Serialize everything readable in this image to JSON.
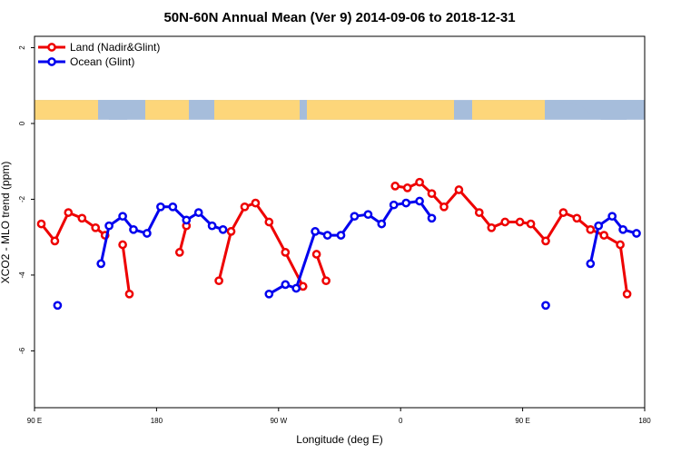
{
  "chart_data": {
    "type": "line",
    "title": "50N-60N Annual Mean (Ver 9)   2014-09-06 to 2018-12-31",
    "xlabel": "Longitude (deg E)",
    "ylabel": "XCO2 - MLO trend (ppm)",
    "xlim": [
      90,
      540
    ],
    "ylim": [
      -7.5,
      2.3
    ],
    "x_ticks": [
      {
        "value": 90,
        "label": "90 E"
      },
      {
        "value": 180,
        "label": "180"
      },
      {
        "value": 270,
        "label": "90 W"
      },
      {
        "value": 360,
        "label": "0"
      },
      {
        "value": 450,
        "label": "90 E"
      },
      {
        "value": 540,
        "label": "180"
      }
    ],
    "y_ticks": [
      {
        "value": 2,
        "label": "2"
      },
      {
        "value": 0,
        "label": "0"
      },
      {
        "value": -2,
        "label": "-2"
      },
      {
        "value": -4,
        "label": "-4"
      },
      {
        "value": -6,
        "label": "-6"
      }
    ],
    "legend": {
      "position": "top-left"
    },
    "map_strip": {
      "y_range": [
        0.1,
        0.62
      ],
      "ocean_color": "#a6bddb",
      "land_color": "#fdd67a"
    },
    "series": [
      {
        "name": "Land (Nadir&Glint)",
        "color": "#ee0000",
        "segments": [
          [
            [
              95,
              -2.65
            ],
            [
              105,
              -3.1
            ],
            [
              115,
              -2.35
            ],
            [
              125,
              -2.5
            ],
            [
              135,
              -2.75
            ],
            [
              142,
              -2.95
            ]
          ],
          [
            [
              155,
              -3.2
            ],
            [
              160,
              -4.5
            ]
          ],
          [
            [
              197,
              -3.4
            ],
            [
              202,
              -2.7
            ]
          ],
          [
            [
              226,
              -4.15
            ],
            [
              235,
              -2.85
            ],
            [
              245,
              -2.2
            ],
            [
              253,
              -2.1
            ],
            [
              263,
              -2.6
            ],
            [
              275,
              -3.4
            ],
            [
              288,
              -4.3
            ]
          ],
          [
            [
              298,
              -3.45
            ],
            [
              305,
              -4.15
            ]
          ],
          [
            [
              356,
              -1.65
            ],
            [
              365,
              -1.7
            ],
            [
              374,
              -1.55
            ],
            [
              383,
              -1.85
            ],
            [
              392,
              -2.2
            ],
            [
              403,
              -1.75
            ],
            [
              418,
              -2.35
            ],
            [
              427,
              -2.75
            ],
            [
              437,
              -2.6
            ],
            [
              448,
              -2.6
            ],
            [
              456,
              -2.65
            ],
            [
              467,
              -3.1
            ],
            [
              480,
              -2.35
            ],
            [
              490,
              -2.5
            ],
            [
              500,
              -2.8
            ],
            [
              510,
              -2.95
            ],
            [
              522,
              -3.2
            ],
            [
              527,
              -4.5
            ]
          ]
        ]
      },
      {
        "name": "Ocean (Glint)",
        "color": "#0000ee",
        "segments": [
          [
            [
              107,
              -4.8
            ]
          ],
          [
            [
              139,
              -3.7
            ],
            [
              145,
              -2.7
            ],
            [
              155,
              -2.45
            ],
            [
              163,
              -2.8
            ],
            [
              173,
              -2.9
            ],
            [
              183,
              -2.2
            ],
            [
              192,
              -2.2
            ],
            [
              202,
              -2.55
            ],
            [
              211,
              -2.35
            ],
            [
              221,
              -2.7
            ],
            [
              229,
              -2.8
            ]
          ],
          [
            [
              263,
              -4.5
            ],
            [
              275,
              -4.25
            ],
            [
              283,
              -4.35
            ],
            [
              297,
              -2.85
            ],
            [
              306,
              -2.95
            ],
            [
              316,
              -2.95
            ],
            [
              326,
              -2.45
            ],
            [
              336,
              -2.4
            ],
            [
              346,
              -2.65
            ],
            [
              355,
              -2.15
            ],
            [
              364,
              -2.1
            ],
            [
              374,
              -2.05
            ],
            [
              383,
              -2.5
            ]
          ],
          [
            [
              467,
              -4.8
            ]
          ],
          [
            [
              500,
              -3.7
            ],
            [
              506,
              -2.7
            ],
            [
              516,
              -2.45
            ],
            [
              524,
              -2.8
            ],
            [
              534,
              -2.9
            ]
          ]
        ]
      }
    ]
  }
}
